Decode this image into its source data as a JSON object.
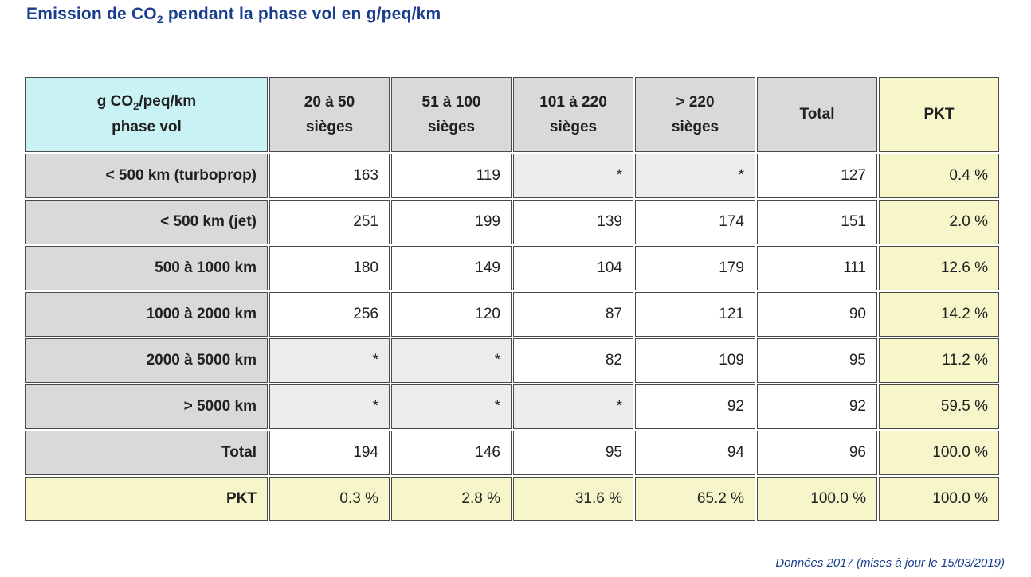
{
  "colors": {
    "title_blue": "#1a3e8f",
    "header_gray": "#d9d9d9",
    "corner_cyan": "#c9f2f4",
    "masked_gray": "#ececec",
    "pkt_yellow": "#f7f6cb",
    "border": "#4a4a4a",
    "text": "#202020"
  },
  "display": {
    "title": {
      "pre": "Emission de CO",
      "sub": "2",
      "post": " pendant la phase vol en g/peq/km"
    },
    "corner": {
      "pre": "g CO",
      "sub": "2",
      "post": "/peq/km",
      "line2": "phase vol"
    },
    "columns": [
      [
        "20 à 50",
        "sièges"
      ],
      [
        "51 à 100",
        "sièges"
      ],
      [
        "101 à 220",
        "sièges"
      ],
      [
        "> 220",
        "sièges"
      ],
      [
        "Total"
      ],
      [
        "PKT"
      ]
    ]
  },
  "chart_data": {
    "type": "table",
    "title": "Emission de CO2 pendant la phase vol en g/peq/km",
    "corner_header": "g CO2/peq/km phase vol",
    "columns": [
      "20 à 50 sièges",
      "51 à 100 sièges",
      "101 à 220 sièges",
      "> 220 sièges",
      "Total",
      "PKT"
    ],
    "rows": [
      {
        "label": "< 500 km (turboprop)",
        "values": [
          "163",
          "119",
          "*",
          "*",
          "127",
          "0.4 %"
        ]
      },
      {
        "label": "< 500 km (jet)",
        "values": [
          "251",
          "199",
          "139",
          "174",
          "151",
          "2.0 %"
        ]
      },
      {
        "label": "500 à 1000 km",
        "values": [
          "180",
          "149",
          "104",
          "179",
          "111",
          "12.6 %"
        ]
      },
      {
        "label": "1000 à 2000 km",
        "values": [
          "256",
          "120",
          "87",
          "121",
          "90",
          "14.2 %"
        ]
      },
      {
        "label": "2000 à 5000 km",
        "values": [
          "*",
          "*",
          "82",
          "109",
          "95",
          "11.2 %"
        ]
      },
      {
        "label": "> 5000 km",
        "values": [
          "*",
          "*",
          "*",
          "92",
          "92",
          "59.5 %"
        ]
      },
      {
        "label": "Total",
        "values": [
          "194",
          "146",
          "95",
          "94",
          "96",
          "100.0 %"
        ]
      },
      {
        "label": "PKT",
        "values": [
          "0.3 %",
          "2.8 %",
          "31.6 %",
          "65.2 %",
          "100.0 %",
          "100.0 %"
        ]
      }
    ],
    "masked_marker": "*",
    "footnote": "Données 2017 (mises à jour le 15/03/2019)"
  }
}
